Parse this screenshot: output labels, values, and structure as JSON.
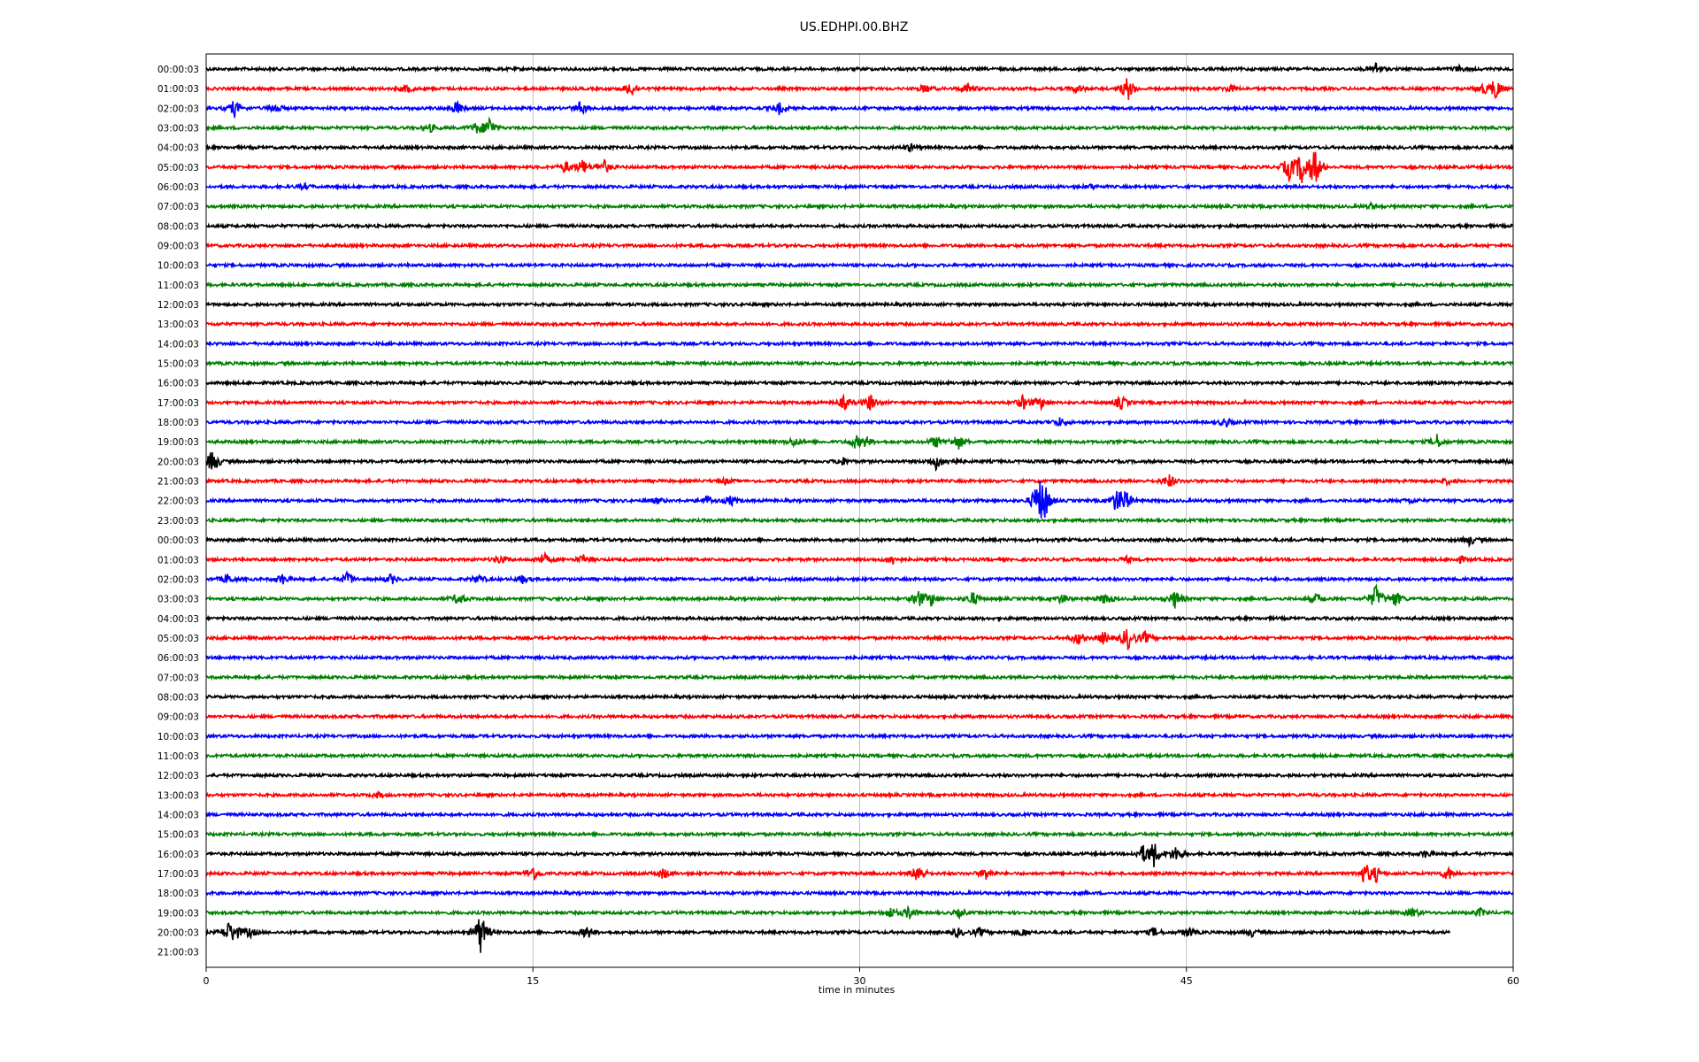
{
  "chart_data": {
    "type": "line",
    "title": "US.EDHPI.00.BHZ",
    "xlabel": "time in minutes",
    "ylabel": "",
    "xlim": [
      0,
      60
    ],
    "xticks": [
      0,
      15,
      30,
      45,
      60
    ],
    "grid_x": true,
    "colors": [
      "#000000",
      "#ff0000",
      "#0000ff",
      "#008000"
    ],
    "rows": [
      {
        "label": "00:00:03",
        "events": [
          [
            53.7,
            0.45
          ],
          [
            57.5,
            0.2
          ]
        ]
      },
      {
        "label": "01:00:03",
        "events": [
          [
            9.2,
            0.3
          ],
          [
            19.5,
            0.6
          ],
          [
            33,
            0.3
          ],
          [
            35,
            0.4
          ],
          [
            40,
            0.3
          ],
          [
            42.3,
            0.9
          ],
          [
            47,
            0.25
          ],
          [
            58.6,
            0.3
          ],
          [
            59.2,
            0.8
          ]
        ]
      },
      {
        "label": "02:00:03",
        "events": [
          [
            1.3,
            0.6
          ],
          [
            3.2,
            0.35
          ],
          [
            11.5,
            0.5
          ],
          [
            17.2,
            0.5
          ],
          [
            26.3,
            0.4
          ]
        ]
      },
      {
        "label": "03:00:03",
        "events": [
          [
            10.3,
            0.25
          ],
          [
            12.4,
            0.35
          ],
          [
            13,
            0.8
          ]
        ]
      },
      {
        "label": "04:00:03",
        "events": [
          [
            32.3,
            0.25
          ]
        ]
      },
      {
        "label": "05:00:03",
        "events": [
          [
            16.5,
            0.4
          ],
          [
            17.3,
            0.55
          ],
          [
            18.3,
            0.45
          ],
          [
            49.7,
            0.9
          ],
          [
            50.3,
            1.2
          ],
          [
            50.9,
            1.4
          ]
        ]
      },
      {
        "label": "06:00:03",
        "events": [
          [
            4.5,
            0.2
          ],
          [
            40.6,
            0.15
          ]
        ]
      },
      {
        "label": "07:00:03",
        "events": [
          [
            53.5,
            0.2
          ]
        ]
      },
      {
        "label": "08:00:03",
        "events": []
      },
      {
        "label": "09:00:03",
        "events": []
      },
      {
        "label": "10:00:03",
        "events": []
      },
      {
        "label": "11:00:03",
        "events": []
      },
      {
        "label": "12:00:03",
        "events": []
      },
      {
        "label": "13:00:03",
        "events": []
      },
      {
        "label": "14:00:03",
        "events": []
      },
      {
        "label": "15:00:03",
        "events": []
      },
      {
        "label": "16:00:03",
        "events": []
      },
      {
        "label": "17:00:03",
        "events": [
          [
            29.3,
            0.5
          ],
          [
            30.5,
            0.6
          ],
          [
            37.5,
            0.5
          ],
          [
            38.3,
            0.45
          ],
          [
            42,
            0.5
          ]
        ]
      },
      {
        "label": "18:00:03",
        "events": [
          [
            39.2,
            0.3
          ],
          [
            46.8,
            0.3
          ]
        ]
      },
      {
        "label": "19:00:03",
        "events": [
          [
            27,
            0.35
          ],
          [
            29.8,
            0.4
          ],
          [
            30.3,
            0.35
          ],
          [
            33.5,
            0.4
          ],
          [
            34.5,
            0.6
          ],
          [
            56.5,
            0.5
          ]
        ]
      },
      {
        "label": "20:00:03",
        "events": [
          [
            0.3,
            0.9
          ],
          [
            29.2,
            0.3
          ],
          [
            33.5,
            0.55
          ],
          [
            34.3,
            0.3
          ],
          [
            59.8,
            0.25
          ]
        ]
      },
      {
        "label": "21:00:03",
        "events": [
          [
            23.8,
            0.2
          ],
          [
            44.2,
            0.5
          ],
          [
            57,
            0.2
          ]
        ]
      },
      {
        "label": "22:00:03",
        "events": [
          [
            20.7,
            0.2
          ],
          [
            23,
            0.35
          ],
          [
            24.1,
            0.35
          ],
          [
            38.2,
            1.5
          ],
          [
            38.5,
            1.1
          ],
          [
            41.8,
            0.8
          ],
          [
            42.2,
            0.7
          ],
          [
            55.3,
            0.2
          ]
        ]
      },
      {
        "label": "23:00:03",
        "events": []
      },
      {
        "label": "00:00:03",
        "events": [
          [
            58,
            0.35
          ]
        ]
      },
      {
        "label": "01:00:03",
        "events": [
          [
            13.5,
            0.3
          ],
          [
            15.5,
            0.45
          ],
          [
            17.3,
            0.3
          ],
          [
            31.5,
            0.35
          ],
          [
            42.3,
            0.2
          ],
          [
            57.6,
            0.2
          ]
        ]
      },
      {
        "label": "02:00:03",
        "events": [
          [
            1,
            0.35
          ],
          [
            3.5,
            0.35
          ],
          [
            6.5,
            0.5
          ],
          [
            8.5,
            0.35
          ],
          [
            12.5,
            0.3
          ],
          [
            14.5,
            0.3
          ]
        ]
      },
      {
        "label": "03:00:03",
        "events": [
          [
            11.6,
            0.45
          ],
          [
            32.7,
            0.6
          ],
          [
            33.3,
            0.45
          ],
          [
            35.2,
            0.5
          ],
          [
            39.3,
            0.35
          ],
          [
            41.3,
            0.45
          ],
          [
            44.5,
            0.7
          ],
          [
            51,
            0.35
          ],
          [
            53.7,
            1.0
          ],
          [
            54.6,
            0.6
          ]
        ]
      },
      {
        "label": "04:00:03",
        "events": []
      },
      {
        "label": "05:00:03",
        "events": [
          [
            40,
            0.45
          ],
          [
            41.2,
            0.45
          ],
          [
            42.3,
            0.9
          ],
          [
            43.1,
            0.45
          ]
        ]
      },
      {
        "label": "06:00:03",
        "events": []
      },
      {
        "label": "07:00:03",
        "events": []
      },
      {
        "label": "08:00:03",
        "events": []
      },
      {
        "label": "09:00:03",
        "events": []
      },
      {
        "label": "10:00:03",
        "events": []
      },
      {
        "label": "11:00:03",
        "events": []
      },
      {
        "label": "12:00:03",
        "events": []
      },
      {
        "label": "13:00:03",
        "events": [
          [
            7.9,
            0.2
          ]
        ]
      },
      {
        "label": "14:00:03",
        "events": []
      },
      {
        "label": "15:00:03",
        "events": []
      },
      {
        "label": "16:00:03",
        "events": [
          [
            43,
            0.55
          ],
          [
            43.5,
            0.9
          ],
          [
            44.5,
            0.55
          ],
          [
            56,
            0.25
          ]
        ]
      },
      {
        "label": "17:00:03",
        "events": [
          [
            15,
            0.6
          ],
          [
            21,
            0.4
          ],
          [
            32.7,
            0.8
          ],
          [
            35.8,
            0.45
          ],
          [
            53.2,
            0.75
          ],
          [
            53.7,
            0.5
          ],
          [
            57,
            0.5
          ]
        ]
      },
      {
        "label": "18:00:03",
        "events": []
      },
      {
        "label": "19:00:03",
        "events": [
          [
            31.4,
            0.4
          ],
          [
            32.3,
            0.5
          ],
          [
            34.6,
            0.3
          ],
          [
            55.4,
            0.35
          ],
          [
            58.5,
            0.3
          ]
        ]
      },
      {
        "label": "20:00:03",
        "events": [
          [
            1,
            0.55
          ],
          [
            1.3,
            0.55
          ],
          [
            2,
            0.35
          ],
          [
            12.6,
            1.5
          ],
          [
            17.5,
            0.45
          ],
          [
            34.5,
            0.3
          ],
          [
            35.5,
            0.3
          ],
          [
            37.5,
            0.3
          ],
          [
            43.5,
            0.3
          ],
          [
            45.1,
            0.35
          ],
          [
            48,
            0.25
          ]
        ],
        "end": 57.1
      },
      {
        "label": "21:00:03",
        "events": [],
        "empty": true
      }
    ]
  }
}
